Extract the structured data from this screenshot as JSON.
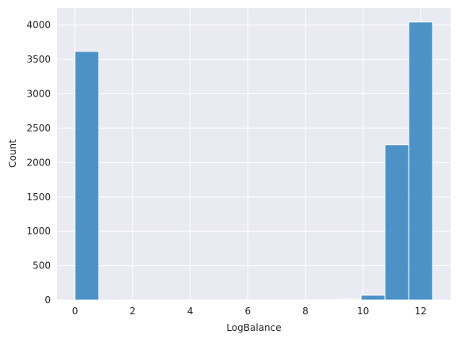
{
  "chart_data": {
    "type": "bar",
    "title": "",
    "xlabel": "LogBalance",
    "ylabel": "Count",
    "xlim": [
      -0.62,
      13.04
    ],
    "ylim": [
      0,
      4250
    ],
    "grid": true,
    "bin_width": 0.8276,
    "bins": [
      {
        "x0": 0.0,
        "x1": 0.8276,
        "count": 3617
      },
      {
        "x0": 0.8276,
        "x1": 1.6552,
        "count": 0
      },
      {
        "x0": 1.6552,
        "x1": 2.4828,
        "count": 0
      },
      {
        "x0": 2.4828,
        "x1": 3.3104,
        "count": 0
      },
      {
        "x0": 3.3104,
        "x1": 4.138,
        "count": 0
      },
      {
        "x0": 4.138,
        "x1": 4.9656,
        "count": 0
      },
      {
        "x0": 4.9656,
        "x1": 5.7932,
        "count": 0
      },
      {
        "x0": 5.7932,
        "x1": 6.6208,
        "count": 0
      },
      {
        "x0": 6.6208,
        "x1": 7.4484,
        "count": 0
      },
      {
        "x0": 7.4484,
        "x1": 8.276,
        "count": 0
      },
      {
        "x0": 8.276,
        "x1": 9.1036,
        "count": 1
      },
      {
        "x0": 9.1036,
        "x1": 9.9312,
        "count": 12
      },
      {
        "x0": 9.9312,
        "x1": 10.7588,
        "count": 70
      },
      {
        "x0": 10.7588,
        "x1": 11.5864,
        "count": 2260
      },
      {
        "x0": 11.5864,
        "x1": 12.414,
        "count": 4045
      }
    ],
    "xticks": [
      0,
      2,
      4,
      6,
      8,
      10,
      12
    ],
    "xtick_labels": [
      "0",
      "2",
      "4",
      "6",
      "8",
      "10",
      "12"
    ],
    "yticks": [
      0,
      500,
      1000,
      1500,
      2000,
      2500,
      3000,
      3500,
      4000
    ],
    "ytick_labels": [
      "0",
      "500",
      "1000",
      "1500",
      "2000",
      "2500",
      "3000",
      "3500",
      "4000"
    ]
  },
  "colors": {
    "plot_background": "#eaeaf2",
    "grid": "#ffffff",
    "bar_fill": "#3b88c2",
    "bar_edge": "#ffffff"
  }
}
